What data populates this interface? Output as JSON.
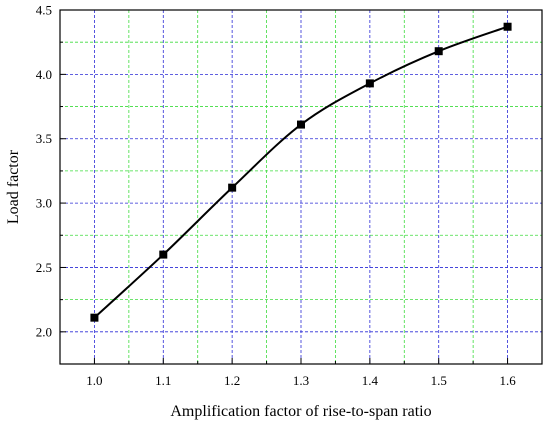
{
  "chart_data": {
    "type": "line",
    "title": "",
    "xlabel": "Amplification factor of rise-to-span ratio",
    "ylabel": "Load factor",
    "xlim": [
      0.95,
      1.65
    ],
    "ylim": [
      1.75,
      4.5
    ],
    "xticks": [
      1.0,
      1.1,
      1.2,
      1.3,
      1.4,
      1.5,
      1.6
    ],
    "xtick_labels": [
      "1.0",
      "1.1",
      "1.2",
      "1.3",
      "1.4",
      "1.5",
      "1.6"
    ],
    "yticks": [
      2.0,
      2.5,
      3.0,
      3.5,
      4.0,
      4.5
    ],
    "ytick_labels": [
      "2.0",
      "2.5",
      "3.0",
      "3.5",
      "4.0",
      "4.5"
    ],
    "minor_grid_x": [
      1.05,
      1.15,
      1.25,
      1.35,
      1.45,
      1.55
    ],
    "minor_grid_y": [
      2.25,
      2.75,
      3.25,
      3.75,
      4.25
    ],
    "grid": true,
    "legend": "none",
    "colors": {
      "major_grid": "#2b2bd6",
      "minor_grid": "#3ddc3d",
      "series": "#000000"
    },
    "series": [
      {
        "x": [
          1.0,
          1.1,
          1.2,
          1.3,
          1.4,
          1.5,
          1.6
        ],
        "values": [
          2.11,
          2.6,
          3.12,
          3.61,
          3.93,
          4.18,
          4.37
        ]
      }
    ]
  }
}
